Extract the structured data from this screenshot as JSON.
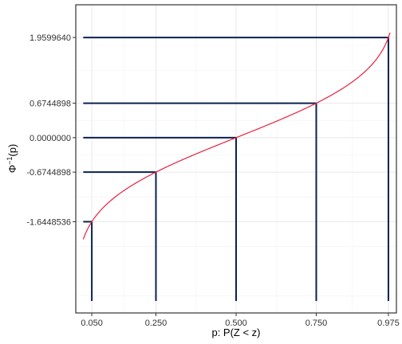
{
  "chart_data": {
    "type": "line",
    "title": "",
    "xlabel": "p: P(Z < z)",
    "ylabel_main": "Φ",
    "ylabel_sup": "−1",
    "ylabel_tail": "(p)",
    "xlim": [
      0.0,
      1.0
    ],
    "ylim": [
      -3.43,
      2.6
    ],
    "grid": true,
    "legend": "none",
    "x_ticks": [
      {
        "value": 0.05,
        "label": "0.050"
      },
      {
        "value": 0.25,
        "label": "0.250"
      },
      {
        "value": 0.5,
        "label": "0.500"
      },
      {
        "value": 0.75,
        "label": "0.750"
      },
      {
        "value": 0.975,
        "label": "0.975"
      }
    ],
    "y_ticks": [
      {
        "value": -1.6448536,
        "label": "-1.6448536"
      },
      {
        "value": -0.6744898,
        "label": "-0.6744898"
      },
      {
        "value": 0.0,
        "label": "0.0000000"
      },
      {
        "value": 0.6744898,
        "label": "0.6744898"
      },
      {
        "value": 1.959964,
        "label": "1.9599640"
      }
    ],
    "curve": {
      "name": "",
      "function": "inverse standard normal CDF",
      "p_range": [
        0.0233,
        0.98
      ],
      "color": "#e8213f"
    },
    "reference_points": [
      {
        "p": 0.05,
        "z": -1.6448536
      },
      {
        "p": 0.25,
        "z": -0.6744898
      },
      {
        "p": 0.5,
        "z": 0.0
      },
      {
        "p": 0.75,
        "z": 0.6744898
      },
      {
        "p": 0.975,
        "z": 1.959964
      }
    ],
    "reference_x_start": 0.0233,
    "segment_color": "#0b2150"
  }
}
